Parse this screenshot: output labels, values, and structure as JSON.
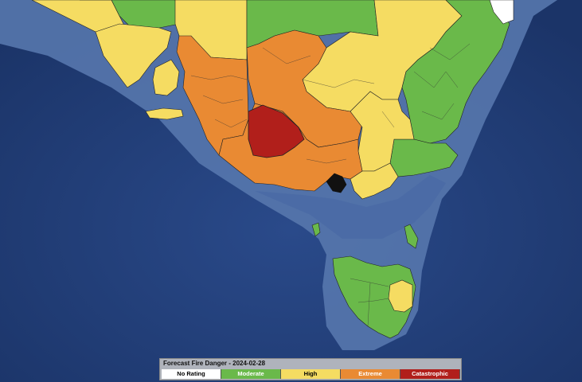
{
  "legend": {
    "title": "Forecast Fire Danger - 2024-02-28",
    "items": [
      {
        "label": "No Rating",
        "color": "#ffffff",
        "text_color": "#000000"
      },
      {
        "label": "Moderate",
        "color": "#6ab94a",
        "text_color": "#ffffff"
      },
      {
        "label": "High",
        "color": "#f5dc62",
        "text_color": "#000000"
      },
      {
        "label": "Extreme",
        "color": "#e98a33",
        "text_color": "#ffffff"
      },
      {
        "label": "Catastrophic",
        "color": "#b11f1b",
        "text_color": "#ffffff"
      }
    ]
  },
  "colors": {
    "ocean": "#213d78",
    "shelf": "#5a7db3",
    "borders": "#222222"
  }
}
